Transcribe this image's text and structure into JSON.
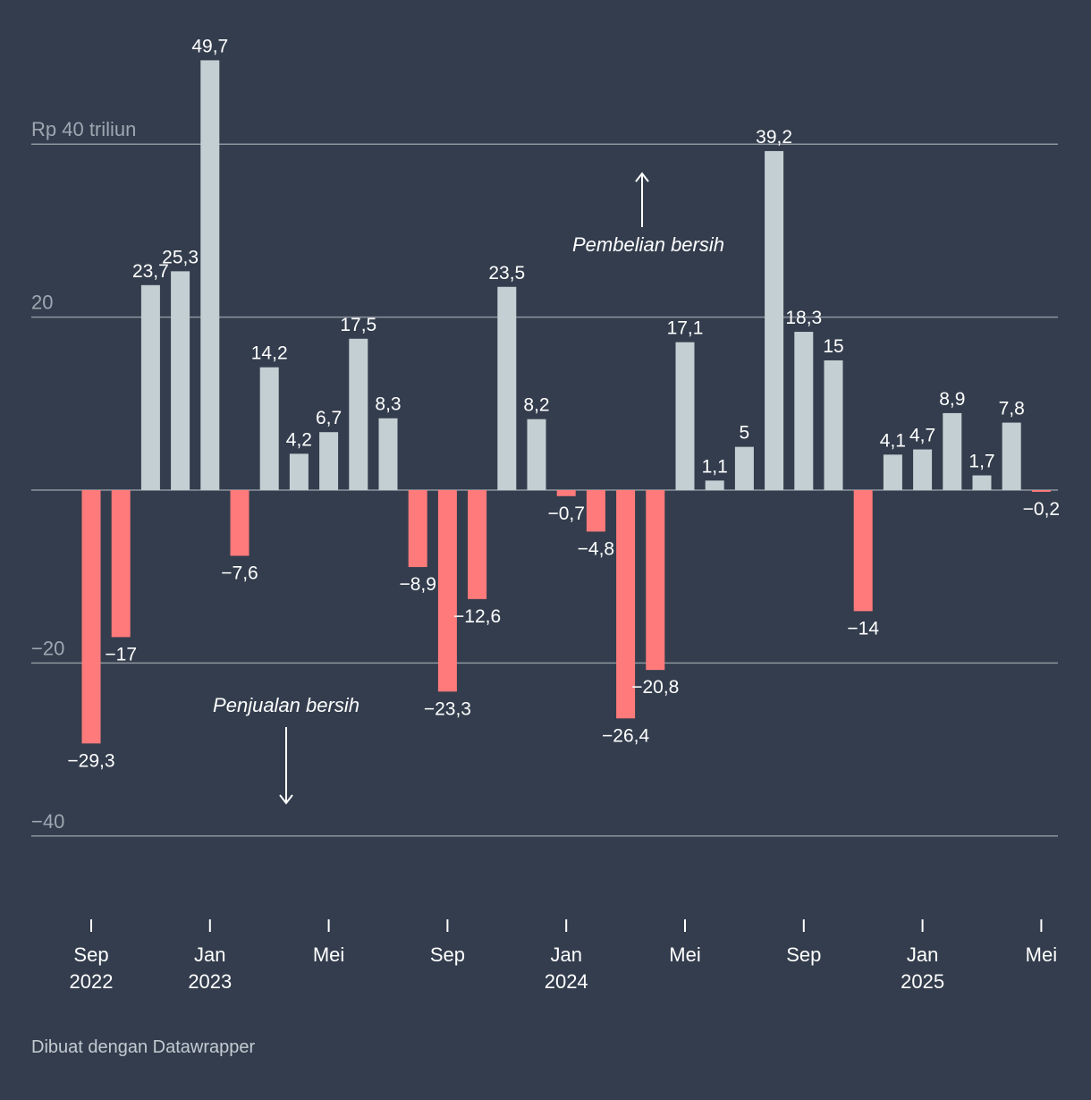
{
  "chart_data": {
    "type": "bar",
    "ylabel": "",
    "y_unit_label": "Rp 40 triliun",
    "ylim": [
      -40,
      50
    ],
    "y_ticks": [
      {
        "value": 40,
        "label": "Rp 40 triliun"
      },
      {
        "value": 20,
        "label": "20"
      },
      {
        "value": -20,
        "label": "−20"
      },
      {
        "value": -40,
        "label": "−40"
      }
    ],
    "values": [
      -29.3,
      -17,
      23.7,
      25.3,
      49.7,
      -7.6,
      14.2,
      4.2,
      6.7,
      17.5,
      8.3,
      -8.9,
      -23.3,
      -12.6,
      23.5,
      8.2,
      -0.7,
      -4.8,
      -26.4,
      -20.8,
      17.1,
      1.1,
      5,
      39.2,
      18.3,
      15,
      -14,
      4.1,
      4.7,
      8.9,
      1.7,
      7.8,
      -0.2
    ],
    "value_labels": [
      "−29,3",
      "−17",
      "23,7",
      "25,3",
      "49,7",
      "−7,6",
      "14,2",
      "4,2",
      "6,7",
      "17,5",
      "8,3",
      "−8,9",
      "−23,3",
      "−12,6",
      "23,5",
      "8,2",
      "−0,7",
      "−4,8",
      "−26,4",
      "−20,8",
      "17,1",
      "1,1",
      "5",
      "39,2",
      "18,3",
      "15",
      "−14",
      "4,1",
      "4,7",
      "8,9",
      "1,7",
      "7,8",
      "−0,2"
    ],
    "x_ticks": [
      {
        "index": 0,
        "line1": "Sep",
        "line2": "2022"
      },
      {
        "index": 4,
        "line1": "Jan",
        "line2": "2023"
      },
      {
        "index": 8,
        "line1": "Mei",
        "line2": ""
      },
      {
        "index": 12,
        "line1": "Sep",
        "line2": ""
      },
      {
        "index": 16,
        "line1": "Jan",
        "line2": "2024"
      },
      {
        "index": 20,
        "line1": "Mei",
        "line2": ""
      },
      {
        "index": 24,
        "line1": "Sep",
        "line2": ""
      },
      {
        "index": 28,
        "line1": "Jan",
        "line2": "2025"
      },
      {
        "index": 32,
        "line1": "Mei",
        "line2": ""
      }
    ],
    "annotations": {
      "positive": "Pembelian bersih",
      "negative": "Penjualan bersih"
    },
    "colors": {
      "positive": "#c4cfd3",
      "negative": "#ff7b7b",
      "grid": "#8e959e",
      "background": "#333d4d"
    }
  },
  "footer": "Dibuat dengan Datawrapper"
}
